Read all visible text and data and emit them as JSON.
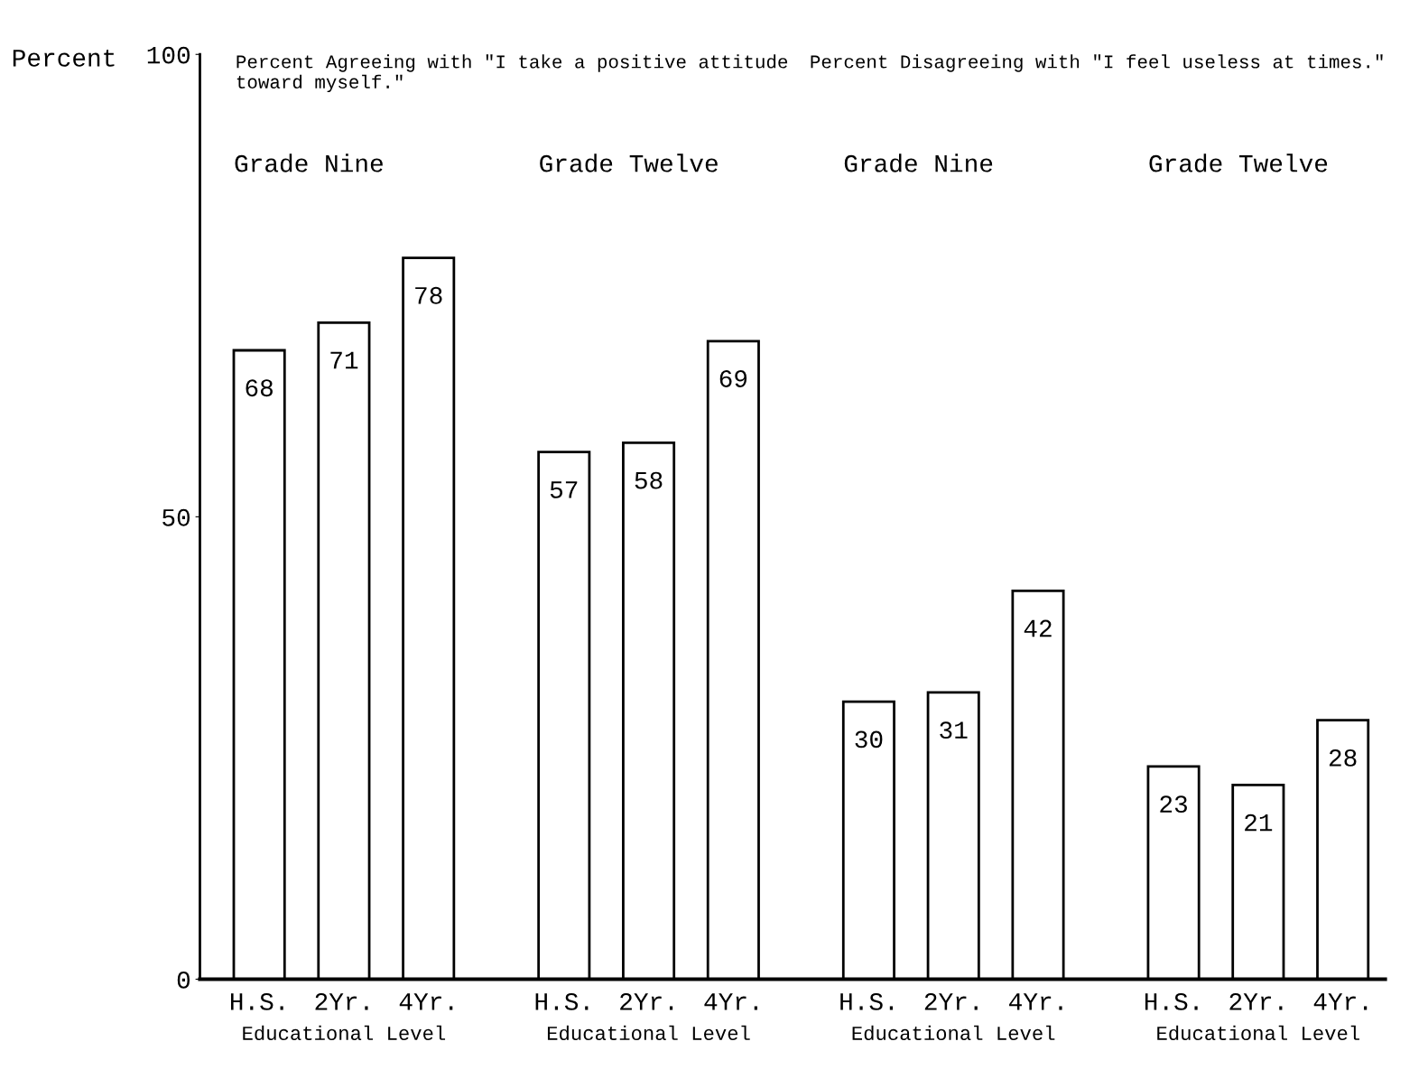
{
  "chart_data": {
    "type": "bar",
    "title": "Percent Agreeing with \"I take a positive attitude\ntoward myself.\"",
    "subtitle": "Percent Disagreeing with \"I feel useless at times.\"",
    "ylabel": "Percent",
    "categories": [
      "H.S.",
      "2Yr.",
      "4Yr.",
      "H.S.",
      "2Yr.",
      "4Yr.",
      "H.S.",
      "2Yr.",
      "4Yr.",
      "H.S.",
      "2Yr.",
      "4Yr."
    ],
    "values": [
      68,
      71,
      78,
      57,
      58,
      69,
      30,
      31,
      42,
      23,
      21,
      28
    ],
    "color": "#ffffff",
    "ylim": [
      0,
      100
    ],
    "yticks": [
      0,
      50,
      100
    ],
    "grid": false,
    "legend": false,
    "data_labels": true,
    "annotations": [
      "Grade Nine",
      "Grade Twelve",
      "Grade Nine",
      "Grade Twelve",
      "Educational Level",
      "Educational Level",
      "Educational Level",
      "Educational Level"
    ]
  }
}
